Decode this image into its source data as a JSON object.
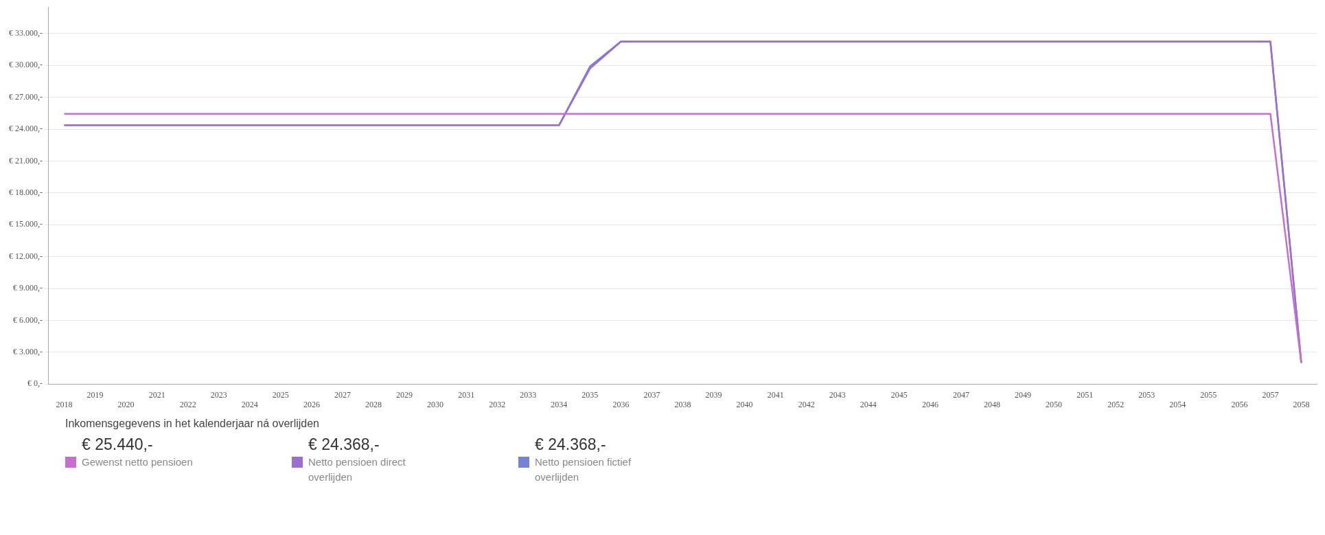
{
  "chart_data": {
    "type": "line",
    "categories": [
      "2018",
      "2019",
      "2020",
      "2021",
      "2022",
      "2023",
      "2024",
      "2025",
      "2026",
      "2027",
      "2028",
      "2029",
      "2030",
      "2031",
      "2032",
      "2033",
      "2034",
      "2035",
      "2036",
      "2037",
      "2038",
      "2039",
      "2040",
      "2041",
      "2042",
      "2043",
      "2044",
      "2045",
      "2046",
      "2047",
      "2048",
      "2049",
      "2050",
      "2051",
      "2052",
      "2053",
      "2054",
      "2055",
      "2056",
      "2057",
      "2058"
    ],
    "series": [
      {
        "name": "Gewenst netto pensioen",
        "color": "#c86dd2",
        "values": [
          25440,
          25440,
          25440,
          25440,
          25440,
          25440,
          25440,
          25440,
          25440,
          25440,
          25440,
          25440,
          25440,
          25440,
          25440,
          25440,
          25440,
          25440,
          25440,
          25440,
          25440,
          25440,
          25440,
          25440,
          25440,
          25440,
          25440,
          25440,
          25440,
          25440,
          25440,
          25440,
          25440,
          25440,
          25440,
          25440,
          25440,
          25440,
          25440,
          25440,
          2000
        ]
      },
      {
        "name": "Netto pensioen direct overlijden",
        "color": "#9b6fd0",
        "values": [
          24368,
          24368,
          24368,
          24368,
          24368,
          24368,
          24368,
          24368,
          24368,
          24368,
          24368,
          24368,
          24368,
          24368,
          24368,
          24368,
          24368,
          29700,
          32250,
          32250,
          32250,
          32250,
          32250,
          32250,
          32250,
          32250,
          32250,
          32250,
          32250,
          32250,
          32250,
          32250,
          32250,
          32250,
          32250,
          32250,
          32250,
          32250,
          32250,
          32250,
          2000
        ]
      },
      {
        "name": "Netto pensioen fictief overlijden",
        "color": "#7484d4",
        "values": [
          24368,
          24368,
          24368,
          24368,
          24368,
          24368,
          24368,
          24368,
          24368,
          24368,
          24368,
          24368,
          24368,
          24368,
          24368,
          24368,
          24368,
          29900,
          32250,
          32250,
          32250,
          32250,
          32250,
          32250,
          32250,
          32250,
          32250,
          32250,
          32250,
          32250,
          32250,
          32250,
          32250,
          32250,
          32250,
          32250,
          32250,
          32250,
          32250,
          32250,
          2000
        ]
      }
    ],
    "ylim": [
      0,
      35500
    ],
    "yticks": [
      {
        "value": 0,
        "label": "€ 0,-"
      },
      {
        "value": 3000,
        "label": "€ 3.000,-"
      },
      {
        "value": 6000,
        "label": "€ 6.000,-"
      },
      {
        "value": 9000,
        "label": "€ 9.000,-"
      },
      {
        "value": 12000,
        "label": "€ 12.000,-"
      },
      {
        "value": 15000,
        "label": "€ 15.000,-"
      },
      {
        "value": 18000,
        "label": "€ 18.000,-"
      },
      {
        "value": 21000,
        "label": "€ 21.000,-"
      },
      {
        "value": 24000,
        "label": "€ 24.000,-"
      },
      {
        "value": 27000,
        "label": "€ 27.000,-"
      },
      {
        "value": 30000,
        "label": "€ 30.000,-"
      },
      {
        "value": 33000,
        "label": "€ 33.000,-"
      }
    ],
    "grid": "y",
    "legend": "bottom",
    "legend_title": "Inkomensgegevens in het kalenderjaar ná overlijden",
    "annotations": [
      "€ 25.440,-",
      "€ 24.368,-",
      "€ 24.368,-"
    ],
    "marker": "none",
    "line_style": "solid"
  }
}
